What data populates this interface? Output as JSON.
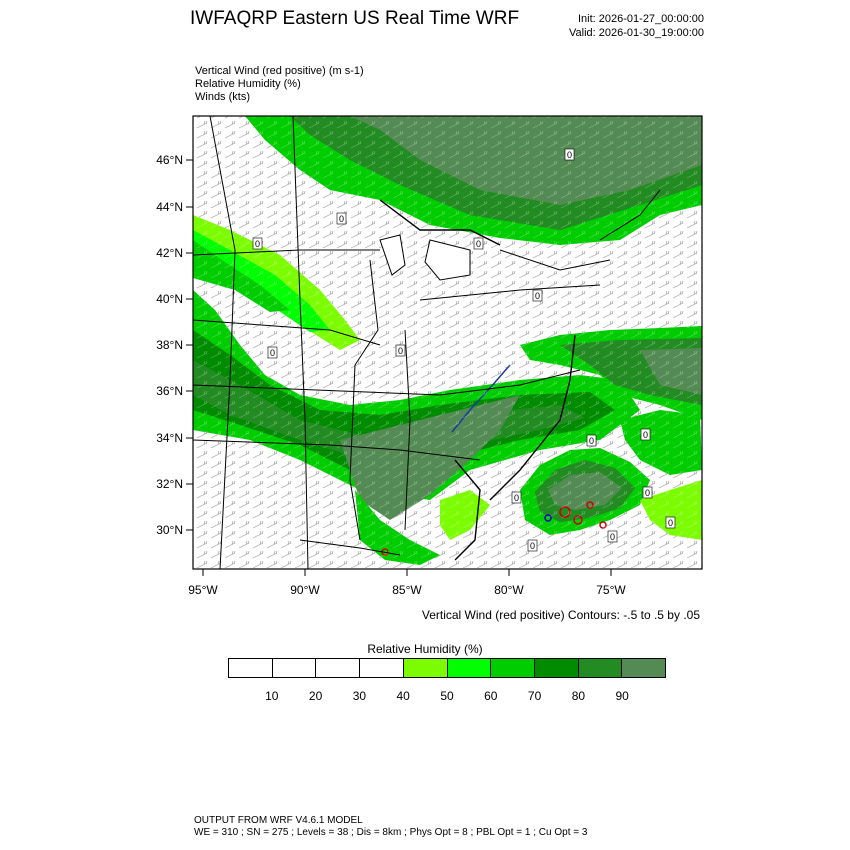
{
  "header": {
    "title": "IWFAQRP Eastern US Real Time WRF",
    "init": "Init: 2026-01-27_00:00:00",
    "valid": "Valid: 2026-01-30_19:00:00"
  },
  "fields": [
    "Vertical Wind (red positive)   (m s-1)",
    "Relative Humidity   (%)",
    "Winds   (kts)"
  ],
  "map": {
    "lat_labels": [
      "46°N",
      "44°N",
      "42°N",
      "40°N",
      "38°N",
      "36°N",
      "34°N",
      "32°N",
      "30°N"
    ],
    "lon_labels": [
      "95°W",
      "90°W",
      "85°W",
      "80°W",
      "75°W"
    ],
    "contour_label": "0"
  },
  "contour_note": "Vertical Wind (red positive) Contours: -.5 to .5 by .05",
  "colorbar": {
    "title": "Relative Humidity   (%)",
    "colors": [
      "#ffffff",
      "#ffffff",
      "#ffffff",
      "#ffffff",
      "#7cfc00",
      "#00ff00",
      "#00cd00",
      "#008b00",
      "#228b22",
      "#548b54"
    ],
    "labels": [
      "10",
      "20",
      "30",
      "40",
      "50",
      "60",
      "70",
      "80",
      "90"
    ]
  },
  "footer": {
    "line1": "OUTPUT FROM WRF V4.6.1 MODEL",
    "line2": "WE = 310 ; SN = 275 ; Levels = 38 ; Dis = 8km ; Phys Opt = 8 ; PBL Opt = 1 ; Cu Opt = 3"
  }
}
